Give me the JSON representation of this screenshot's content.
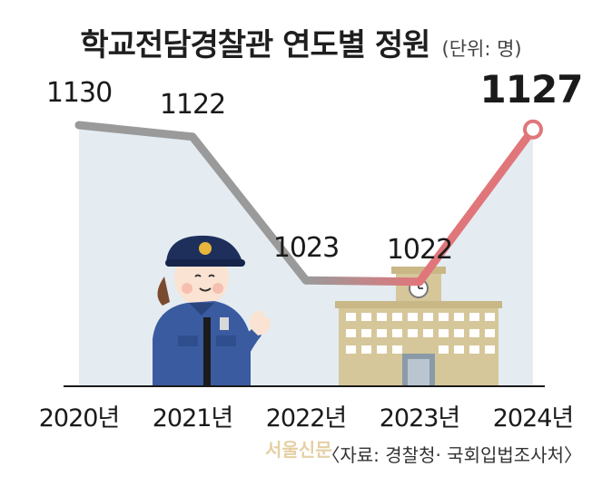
{
  "header": {
    "title": "학교전담경찰관 연도별 정원",
    "unit": "(단위: 명)"
  },
  "chart_data": {
    "type": "line",
    "title": "학교전담경찰관 연도별 정원",
    "unit": "(단위: 명)",
    "categories": [
      "2020년",
      "2021년",
      "2022년",
      "2023년",
      "2024년"
    ],
    "series": [
      {
        "values": [
          1130,
          1122,
          1023,
          1022,
          1127
        ]
      }
    ],
    "data_labels": [
      "1130",
      "1122",
      "1023",
      "1022",
      "1127"
    ],
    "highlight_index": 4,
    "ylim": [
      950,
      1160
    ],
    "grid": false,
    "colors": {
      "line_gray": "#9a9a9a",
      "line_red": "#e0767a",
      "area_fill": "#e4ecf2"
    }
  },
  "footer": {
    "source": "〈자료: 경찰청· 국회입법조사처〉",
    "watermark": "서울신문"
  }
}
